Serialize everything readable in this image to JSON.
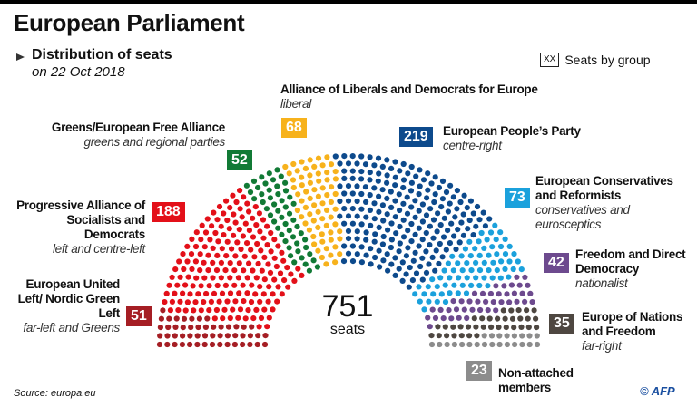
{
  "header": {
    "title": "European Parliament",
    "subtitle": "Distribution of seats",
    "date": "on 22 Oct 2018"
  },
  "legend": {
    "box": "XX",
    "label": "Seats by group"
  },
  "center": {
    "total": "751",
    "unit": "seats"
  },
  "footer": {
    "source": "Source: europa.eu",
    "credit": "© AFP"
  },
  "chart_data": {
    "type": "parliament",
    "title": "European Parliament — Distribution of seats on 22 Oct 2018",
    "total": 751,
    "groups": [
      {
        "name": "European United Left/ Nordic Green Left",
        "desc": "far-left and Greens",
        "seats": 51,
        "color": "#a51e24"
      },
      {
        "name": "Progressive Alliance of Socialists and Democrats",
        "desc": "left and centre-left",
        "seats": 188,
        "color": "#e31019"
      },
      {
        "name": "Greens/European Free Alliance",
        "desc": "greens and regional parties",
        "seats": 52,
        "color": "#117a35"
      },
      {
        "name": "Alliance of Liberals and Democrats for Europe",
        "desc": "liberal",
        "seats": 68,
        "color": "#f7b21c"
      },
      {
        "name": "European People’s Party",
        "desc": "centre-right",
        "seats": 219,
        "color": "#0d4a8c"
      },
      {
        "name": "European Conservatives and Reformists",
        "desc": "conservatives and eurosceptics",
        "seats": 73,
        "color": "#1ba1dc"
      },
      {
        "name": "Freedom and Direct Democracy",
        "desc": "nationalist",
        "seats": 42,
        "color": "#6d4a8e"
      },
      {
        "name": "Europe of Nations and Freedom",
        "desc": "far-right",
        "seats": 35,
        "color": "#4e4741"
      },
      {
        "name": "Non-attached members",
        "desc": "",
        "seats": 23,
        "color": "#8c8c8c"
      }
    ]
  }
}
